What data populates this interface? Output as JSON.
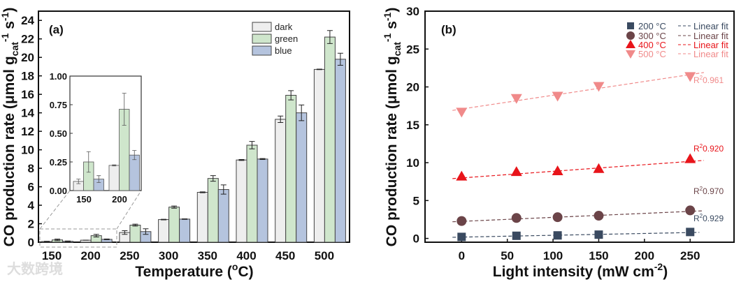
{
  "watermark": "大数跨境",
  "chart_data": [
    {
      "type": "bar",
      "panel_label": "(a)",
      "xlabel": {
        "main": "Temperature (",
        "sup": "o",
        "end": "C)"
      },
      "ylabel": {
        "main": "CO production rate (μmol g",
        "sub": "cat",
        "sup1": "-1",
        "mid": " s",
        "sup2": "-1",
        "end": ")"
      },
      "categories": [
        "150",
        "200",
        "250",
        "300",
        "350",
        "400",
        "450",
        "500"
      ],
      "ylim": [
        0,
        25
      ],
      "yticks": [
        0,
        2,
        4,
        6,
        8,
        10,
        12,
        14,
        16,
        18,
        20,
        22,
        24
      ],
      "legend_position": "top-right",
      "series": [
        {
          "name": "dark",
          "color": "#eeeeee",
          "values": [
            0.08,
            0.22,
            1.05,
            2.45,
            5.4,
            8.9,
            13.3,
            18.7
          ],
          "errors": [
            0.02,
            0.005,
            0.2,
            0.03,
            0.05,
            0.05,
            0.35,
            0.03
          ]
        },
        {
          "name": "green",
          "color": "#cfe6cc",
          "values": [
            0.25,
            0.71,
            1.85,
            3.8,
            6.9,
            10.5,
            15.9,
            22.2
          ],
          "errors": [
            0.09,
            0.14,
            0.1,
            0.12,
            0.3,
            0.4,
            0.5,
            0.7
          ]
        },
        {
          "name": "blue",
          "color": "#b5c4de",
          "values": [
            0.1,
            0.31,
            1.15,
            2.5,
            5.7,
            9.0,
            14.0,
            19.8
          ],
          "errors": [
            0.03,
            0.04,
            0.3,
            0.03,
            0.5,
            0.05,
            0.85,
            0.65
          ]
        }
      ],
      "inset": {
        "categories": [
          "150",
          "200"
        ],
        "ylim": [
          0,
          1.0
        ],
        "yticks": [
          "0.00",
          "0.25",
          "0.50",
          "0.75",
          "1.00"
        ]
      }
    },
    {
      "type": "scatter",
      "panel_label": "(b)",
      "xlabel": {
        "main": "Light intensity (mW cm",
        "sup": "-2",
        "end": ")"
      },
      "ylabel": {
        "main": "CO production rate (μmol g",
        "sub": "cat",
        "sup1": "-1",
        "mid": " s",
        "sup2": "-1",
        "end": ")"
      },
      "xlim": [
        -40,
        298
      ],
      "ylim": [
        -0.5,
        30
      ],
      "xticks": [
        0,
        50,
        100,
        150,
        200,
        250
      ],
      "yticks": [
        0,
        5,
        10,
        15,
        20,
        25,
        30
      ],
      "legend_position": "top-right",
      "fit_label": "Linear fit",
      "series": [
        {
          "name": "200 °C",
          "marker": "square",
          "color": "#3a4a60",
          "x": [
            0,
            60,
            105,
            150,
            250
          ],
          "y": [
            0.2,
            0.35,
            0.4,
            0.5,
            0.85
          ],
          "fit": [
            [
              -10,
              0.15
            ],
            [
              260,
              0.8
            ]
          ],
          "r2": "0.929"
        },
        {
          "name": "300 °C",
          "marker": "circle",
          "color": "#6b4448",
          "x": [
            0,
            60,
            105,
            150,
            250
          ],
          "y": [
            2.3,
            2.7,
            2.8,
            3.0,
            3.7
          ],
          "fit": [
            [
              -10,
              2.2
            ],
            [
              265,
              3.65
            ]
          ],
          "r2": "0.970"
        },
        {
          "name": "400 °C",
          "marker": "triangle-up",
          "color": "#e8141a",
          "x": [
            0,
            60,
            105,
            150,
            250
          ],
          "y": [
            8.2,
            8.8,
            8.9,
            9.2,
            10.5
          ],
          "fit": [
            [
              -10,
              7.9
            ],
            [
              265,
              10.3
            ]
          ],
          "r2": "0.920"
        },
        {
          "name": "500 °C",
          "marker": "triangle-down",
          "color": "#f08a8a",
          "x": [
            0,
            60,
            105,
            150,
            250
          ],
          "y": [
            16.7,
            18.5,
            18.8,
            20.1,
            21.4
          ],
          "fit": [
            [
              -10,
              16.9
            ],
            [
              265,
              21.9
            ]
          ],
          "r2": "0.961"
        }
      ]
    }
  ]
}
